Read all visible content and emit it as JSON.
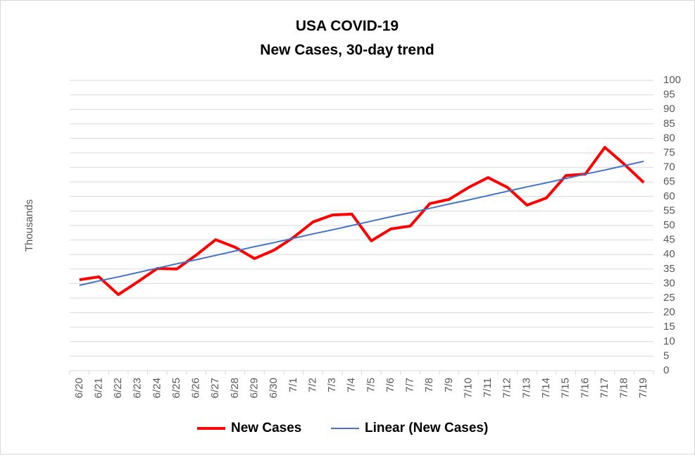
{
  "chart_data": {
    "type": "line",
    "title": "USA COVID-19",
    "subtitle": "New Cases, 30-day trend",
    "y_label": "Thousands",
    "categories": [
      "6/20",
      "6/21",
      "6/22",
      "6/23",
      "6/24",
      "6/25",
      "6/26",
      "6/27",
      "6/28",
      "6/29",
      "6/30",
      "7/1",
      "7/2",
      "7/3",
      "7/4",
      "7/5",
      "7/6",
      "7/7",
      "7/8",
      "7/9",
      "7/10",
      "7/11",
      "7/12",
      "7/13",
      "7/14",
      "7/15",
      "7/16",
      "7/17",
      "7/18",
      "7/19"
    ],
    "series": [
      {
        "name": "New Cases",
        "color": "#ff0000",
        "width": 4,
        "values": [
          31.3,
          32.3,
          26.2,
          30.6,
          35.2,
          35.0,
          39.8,
          45.1,
          42.5,
          38.6,
          41.5,
          45.9,
          51.2,
          53.6,
          53.9,
          44.7,
          48.8,
          49.8,
          57.5,
          59.0,
          63.1,
          66.5,
          63.1,
          57.0,
          59.5,
          67.2,
          67.7,
          76.9,
          71.1,
          64.8
        ]
      },
      {
        "name": "Linear (New Cases)",
        "color": "#4472c4",
        "width": 2,
        "values": [
          29.4,
          30.9,
          32.3,
          33.8,
          35.3,
          36.8,
          38.2,
          39.7,
          41.2,
          42.7,
          44.1,
          45.6,
          47.1,
          48.5,
          50.0,
          51.5,
          53.0,
          54.4,
          55.9,
          57.4,
          58.8,
          60.3,
          61.8,
          63.3,
          64.7,
          66.2,
          67.7,
          69.1,
          70.6,
          72.1
        ]
      }
    ],
    "ylim": [
      0,
      100
    ],
    "yticks": [
      0,
      5,
      10,
      15,
      20,
      25,
      30,
      35,
      40,
      45,
      50,
      55,
      60,
      65,
      70,
      75,
      80,
      85,
      90,
      95,
      100
    ],
    "y_axis_side": "right",
    "grid": true,
    "legend": "bottom"
  }
}
